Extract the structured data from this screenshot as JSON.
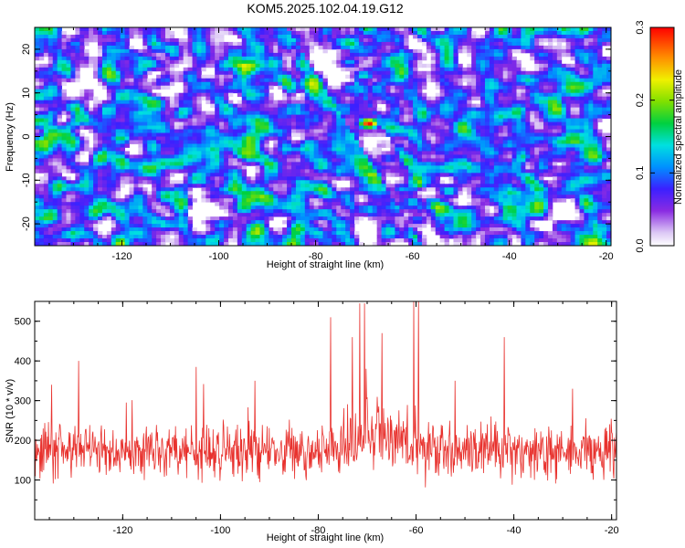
{
  "title": "KOM5.2025.102.04.19.G12",
  "chart_data": [
    {
      "type": "heatmap",
      "xlabel": "Height of straight line (km)",
      "ylabel": "Frequency (Hz)",
      "xlim": [
        -138,
        -19
      ],
      "ylim": [
        -25,
        25
      ],
      "x_ticks": [
        "-120",
        "-100",
        "-80",
        "-60",
        "-40",
        "-20"
      ],
      "x_tick_values": [
        -120,
        -100,
        -80,
        -60,
        -40,
        -20
      ],
      "y_ticks": [
        "-20",
        "-10",
        "0",
        "10",
        "20"
      ],
      "y_tick_values": [
        -20,
        -10,
        0,
        10,
        20
      ],
      "colorbar": {
        "label": "Normalized spectral amplitude",
        "range": [
          0,
          0.3
        ],
        "ticks": [
          "0.0",
          "0.1",
          "0.2",
          "0.3"
        ],
        "tick_values": [
          0.0,
          0.1,
          0.2,
          0.3
        ],
        "colormap": "rainbow (white-purple-blue-cyan-green-yellow-red)"
      },
      "features": [
        {
          "x": -73,
          "y": 17,
          "value": 0.12
        },
        {
          "x": -70,
          "y": 14,
          "value": 0.15
        },
        {
          "x": -69,
          "y": 3,
          "value": 0.3
        },
        {
          "x": -65,
          "y": -5,
          "value": 0.1
        },
        {
          "x": -62,
          "y": -12,
          "value": 0.12
        },
        {
          "x": -60,
          "y": -15,
          "value": 0.14
        },
        {
          "x": -59,
          "y": -19,
          "value": 0.1
        },
        {
          "x": -55,
          "y": 23,
          "value": 0.1
        },
        {
          "x": -53,
          "y": 15,
          "value": 0.08
        },
        {
          "x": -25,
          "y": 10,
          "value": 0.09
        },
        {
          "x": -136,
          "y": 15,
          "value": 0.08
        },
        {
          "x": -117,
          "y": -21,
          "value": 0.09
        }
      ]
    },
    {
      "type": "line",
      "xlabel": "Height of straight line (km)",
      "ylabel": "SNR (10 * v/v)",
      "xlim": [
        -138,
        -19
      ],
      "ylim": [
        0,
        550
      ],
      "x_ticks": [
        "-120",
        "-100",
        "-80",
        "-60",
        "-40",
        "-20"
      ],
      "x_tick_values": [
        -120,
        -100,
        -80,
        -60,
        -40,
        -20
      ],
      "y_ticks": [
        "100",
        "200",
        "300",
        "400",
        "500"
      ],
      "y_tick_values": [
        100,
        200,
        300,
        400,
        500
      ],
      "color": "#e8322e",
      "baseline_range": [
        10,
        250
      ],
      "peaks": [
        {
          "x": -134.5,
          "y": 340
        },
        {
          "x": -129,
          "y": 400
        },
        {
          "x": -105,
          "y": 385
        },
        {
          "x": -93,
          "y": 350
        },
        {
          "x": -77.5,
          "y": 510
        },
        {
          "x": -73,
          "y": 460
        },
        {
          "x": -71.5,
          "y": 545
        },
        {
          "x": -70.5,
          "y": 545
        },
        {
          "x": -67,
          "y": 470
        },
        {
          "x": -60.5,
          "y": 550
        },
        {
          "x": -59.5,
          "y": 550
        },
        {
          "x": -52,
          "y": 350
        },
        {
          "x": -42,
          "y": 460
        },
        {
          "x": -28,
          "y": 330
        }
      ]
    }
  ]
}
